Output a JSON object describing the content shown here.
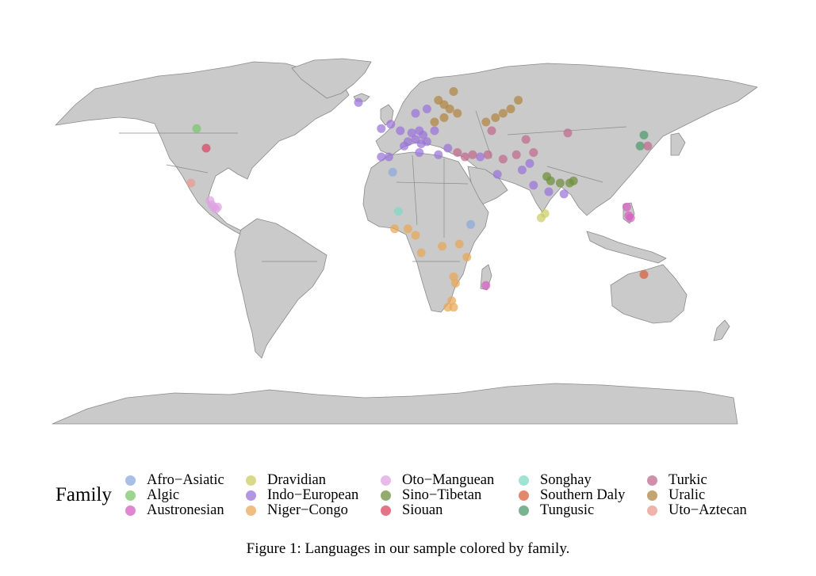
{
  "legend": {
    "title": "Family",
    "families": [
      {
        "name": "Afro−Asiatic",
        "color": "#8ca9dc"
      },
      {
        "name": "Algic",
        "color": "#7cc66b"
      },
      {
        "name": "Austronesian",
        "color": "#d75fc3"
      },
      {
        "name": "Dravidian",
        "color": "#cccc66"
      },
      {
        "name": "Indo−European",
        "color": "#9a73d8"
      },
      {
        "name": "Niger−Congo",
        "color": "#e9a858"
      },
      {
        "name": "Oto−Manguean",
        "color": "#dea4e2"
      },
      {
        "name": "Sino−Tibetan",
        "color": "#6f8f3c"
      },
      {
        "name": "Siouan",
        "color": "#d9445f"
      },
      {
        "name": "Songhay",
        "color": "#7fd9c4"
      },
      {
        "name": "Southern Daly",
        "color": "#d9603a"
      },
      {
        "name": "Tungusic",
        "color": "#4d9a6a"
      },
      {
        "name": "Turkic",
        "color": "#c06a8e"
      },
      {
        "name": "Uralic",
        "color": "#b08540"
      },
      {
        "name": "Uto−Aztecan",
        "color": "#eb9a90"
      }
    ]
  },
  "map": {
    "land_color": "#cacaca",
    "border_color": "#8a8a8a",
    "points": [
      {
        "family": "Afro−Asiatic",
        "lon": -2,
        "lat": 33
      },
      {
        "family": "Afro−Asiatic",
        "lon": 39,
        "lat": 9
      },
      {
        "family": "Algic",
        "lon": -105,
        "lat": 53
      },
      {
        "family": "Austronesian",
        "lon": 121,
        "lat": 17
      },
      {
        "family": "Austronesian",
        "lon": 122,
        "lat": 13
      },
      {
        "family": "Austronesian",
        "lon": 123,
        "lat": 12
      },
      {
        "family": "Austronesian",
        "lon": 47,
        "lat": -19
      },
      {
        "family": "Dravidian",
        "lon": 78,
        "lat": 14
      },
      {
        "family": "Dravidian",
        "lon": 76,
        "lat": 12
      },
      {
        "family": "Indo−European",
        "lon": -20,
        "lat": 65
      },
      {
        "family": "Indo−European",
        "lon": -8,
        "lat": 53
      },
      {
        "family": "Indo−European",
        "lon": -3,
        "lat": 55
      },
      {
        "family": "Indo−European",
        "lon": 10,
        "lat": 60
      },
      {
        "family": "Indo−European",
        "lon": 16,
        "lat": 62
      },
      {
        "family": "Indo−European",
        "lon": 2,
        "lat": 52
      },
      {
        "family": "Indo−European",
        "lon": 8,
        "lat": 51
      },
      {
        "family": "Indo−European",
        "lon": 12,
        "lat": 52
      },
      {
        "family": "Indo−European",
        "lon": 14,
        "lat": 50
      },
      {
        "family": "Indo−European",
        "lon": 10,
        "lat": 48
      },
      {
        "family": "Indo−European",
        "lon": 6,
        "lat": 47
      },
      {
        "family": "Indo−European",
        "lon": 4,
        "lat": 45
      },
      {
        "family": "Indo−European",
        "lon": 13,
        "lat": 46
      },
      {
        "family": "Indo−European",
        "lon": 16,
        "lat": 47
      },
      {
        "family": "Indo−European",
        "lon": 20,
        "lat": 52
      },
      {
        "family": "Indo−European",
        "lon": -4,
        "lat": 40
      },
      {
        "family": "Indo−European",
        "lon": -8,
        "lat": 40
      },
      {
        "family": "Indo−European",
        "lon": 12,
        "lat": 42
      },
      {
        "family": "Indo−European",
        "lon": 22,
        "lat": 41
      },
      {
        "family": "Indo−European",
        "lon": 27,
        "lat": 44
      },
      {
        "family": "Indo−European",
        "lon": 44,
        "lat": 40
      },
      {
        "family": "Indo−European",
        "lon": 53,
        "lat": 32
      },
      {
        "family": "Indo−European",
        "lon": 66,
        "lat": 34
      },
      {
        "family": "Indo−European",
        "lon": 70,
        "lat": 37
      },
      {
        "family": "Indo−European",
        "lon": 72,
        "lat": 27
      },
      {
        "family": "Indo−European",
        "lon": 80,
        "lat": 24
      },
      {
        "family": "Indo−European",
        "lon": 88,
        "lat": 23
      },
      {
        "family": "Niger−Congo",
        "lon": -1,
        "lat": 7
      },
      {
        "family": "Niger−Congo",
        "lon": 6,
        "lat": 7
      },
      {
        "family": "Niger−Congo",
        "lon": 10,
        "lat": 4
      },
      {
        "family": "Niger−Congo",
        "lon": 13,
        "lat": -4
      },
      {
        "family": "Niger−Congo",
        "lon": 24,
        "lat": -1
      },
      {
        "family": "Niger−Congo",
        "lon": 33,
        "lat": 0
      },
      {
        "family": "Niger−Congo",
        "lon": 37,
        "lat": -6
      },
      {
        "family": "Niger−Congo",
        "lon": 30,
        "lat": -15
      },
      {
        "family": "Niger−Congo",
        "lon": 31,
        "lat": -18
      },
      {
        "family": "Niger−Congo",
        "lon": 29,
        "lat": -26
      },
      {
        "family": "Niger−Congo",
        "lon": 27,
        "lat": -29
      },
      {
        "family": "Niger−Congo",
        "lon": 30,
        "lat": -29
      },
      {
        "family": "Oto−Manguean",
        "lon": -98,
        "lat": 20
      },
      {
        "family": "Oto−Manguean",
        "lon": -97,
        "lat": 18
      },
      {
        "family": "Oto−Manguean",
        "lon": -96,
        "lat": 17
      },
      {
        "family": "Oto−Manguean",
        "lon": -95,
        "lat": 16
      },
      {
        "family": "Oto−Manguean",
        "lon": -94,
        "lat": 17
      },
      {
        "family": "Sino−Tibetan",
        "lon": 79,
        "lat": 31
      },
      {
        "family": "Sino−Tibetan",
        "lon": 81,
        "lat": 29
      },
      {
        "family": "Sino−Tibetan",
        "lon": 86,
        "lat": 28
      },
      {
        "family": "Sino−Tibetan",
        "lon": 91,
        "lat": 28
      },
      {
        "family": "Sino−Tibetan",
        "lon": 93,
        "lat": 29
      },
      {
        "family": "Siouan",
        "lon": -100,
        "lat": 44
      },
      {
        "family": "Songhay",
        "lon": 1,
        "lat": 15
      },
      {
        "family": "Southern Daly",
        "lon": 130,
        "lat": -14
      },
      {
        "family": "Tungusic",
        "lon": 130,
        "lat": 50
      },
      {
        "family": "Tungusic",
        "lon": 128,
        "lat": 45
      },
      {
        "family": "Turkic",
        "lon": 32,
        "lat": 42
      },
      {
        "family": "Turkic",
        "lon": 36,
        "lat": 40
      },
      {
        "family": "Turkic",
        "lon": 40,
        "lat": 41
      },
      {
        "family": "Turkic",
        "lon": 48,
        "lat": 41
      },
      {
        "family": "Turkic",
        "lon": 56,
        "lat": 39
      },
      {
        "family": "Turkic",
        "lon": 63,
        "lat": 41
      },
      {
        "family": "Turkic",
        "lon": 72,
        "lat": 42
      },
      {
        "family": "Turkic",
        "lon": 68,
        "lat": 48
      },
      {
        "family": "Turkic",
        "lon": 50,
        "lat": 52
      },
      {
        "family": "Turkic",
        "lon": 90,
        "lat": 51
      },
      {
        "family": "Turkic",
        "lon": 132,
        "lat": 45
      },
      {
        "family": "Uralic",
        "lon": 22,
        "lat": 66
      },
      {
        "family": "Uralic",
        "lon": 25,
        "lat": 64
      },
      {
        "family": "Uralic",
        "lon": 28,
        "lat": 62
      },
      {
        "family": "Uralic",
        "lon": 25,
        "lat": 58
      },
      {
        "family": "Uralic",
        "lon": 32,
        "lat": 60
      },
      {
        "family": "Uralic",
        "lon": 47,
        "lat": 56
      },
      {
        "family": "Uralic",
        "lon": 52,
        "lat": 58
      },
      {
        "family": "Uralic",
        "lon": 56,
        "lat": 60
      },
      {
        "family": "Uralic",
        "lon": 60,
        "lat": 62
      },
      {
        "family": "Uralic",
        "lon": 64,
        "lat": 66
      },
      {
        "family": "Uralic",
        "lon": 30,
        "lat": 70
      },
      {
        "family": "Uralic",
        "lon": 20,
        "lat": 56
      },
      {
        "family": "Uto−Aztecan",
        "lon": -108,
        "lat": 28
      }
    ]
  },
  "caption": "Figure 1:  Languages in our sample colored by family."
}
